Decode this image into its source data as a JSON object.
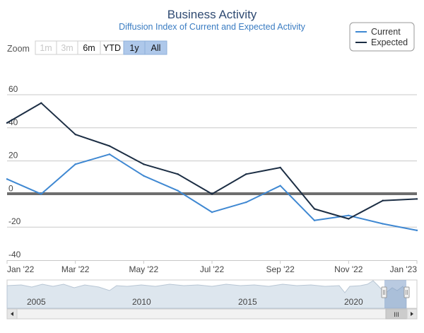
{
  "chart": {
    "title": "Business Activity",
    "subtitle": "Diffusion Index of Current and Expected Activity",
    "zoom_label": "Zoom",
    "zoom_buttons": [
      {
        "label": "1m",
        "state": "disabled"
      },
      {
        "label": "3m",
        "state": "disabled"
      },
      {
        "label": "6m",
        "state": "normal"
      },
      {
        "label": "YTD",
        "state": "normal"
      },
      {
        "label": "1y",
        "state": "selected"
      },
      {
        "label": "All",
        "state": "selected"
      }
    ],
    "navigator_years": [
      "2005",
      "2010",
      "2015",
      "2020"
    ],
    "navigator_scroll_glyph": "III",
    "colors": {
      "current": "#3f88d2",
      "expected": "#1c2e44",
      "title": "#2f4a72",
      "subtitle": "#3a7cc2",
      "zero_line": "#6e6e6e"
    }
  },
  "chart_data": {
    "type": "line",
    "title": "Business Activity",
    "subtitle": "Diffusion Index of Current and Expected Activity",
    "x": [
      "Jan '22",
      "Feb '22",
      "Mar '22",
      "Apr '22",
      "May '22",
      "Jun '22",
      "Jul '22",
      "Aug '22",
      "Sep '22",
      "Oct '22",
      "Nov '22",
      "Dec '22",
      "Jan '23"
    ],
    "x_tick_labels": [
      "Jan '22",
      "Mar '22",
      "May '22",
      "Jul '22",
      "Sep '22",
      "Nov '22",
      "Jan '23"
    ],
    "series": [
      {
        "name": "Current",
        "values": [
          9,
          0,
          18,
          24,
          11,
          2,
          -11,
          -5,
          5,
          -16,
          -13,
          -18,
          -22
        ]
      },
      {
        "name": "Expected",
        "values": [
          43,
          55,
          36,
          29,
          18,
          12,
          0,
          12,
          16,
          -9,
          -15,
          -4,
          -3
        ]
      }
    ],
    "ylim": [
      -40,
      60
    ],
    "y_ticks": [
      -40,
      -20,
      0,
      20,
      40,
      60
    ],
    "legend_position": "top-right",
    "grid": true
  }
}
